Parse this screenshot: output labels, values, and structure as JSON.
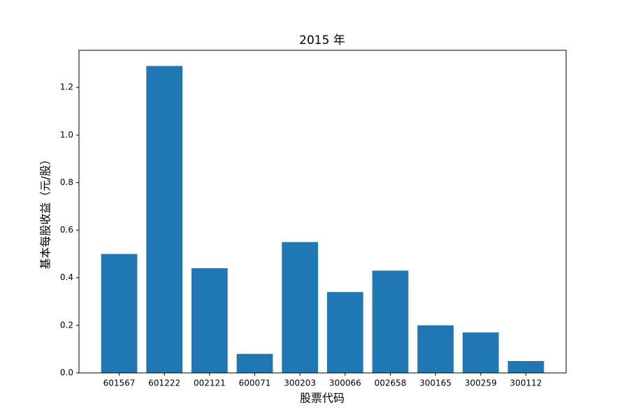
{
  "chart_data": {
    "type": "bar",
    "title": "2015 年",
    "x_label": "股票代码",
    "y_label": "基本每股收益（元/股）",
    "categories": [
      "601567",
      "601222",
      "002121",
      "600071",
      "300203",
      "300066",
      "002658",
      "300165",
      "300259",
      "300112"
    ],
    "values": [
      0.5,
      1.29,
      0.44,
      0.08,
      0.55,
      0.34,
      0.43,
      0.2,
      0.17,
      0.05
    ],
    "color": "#1f77b4",
    "ylim": [
      0,
      1.356
    ],
    "yticks": [
      {
        "value": 0,
        "label": "0.0"
      },
      0.2,
      0.4,
      0.6,
      0.8,
      {
        "value": 1,
        "label": "1.0"
      },
      1.2
    ],
    "grid": false
  }
}
